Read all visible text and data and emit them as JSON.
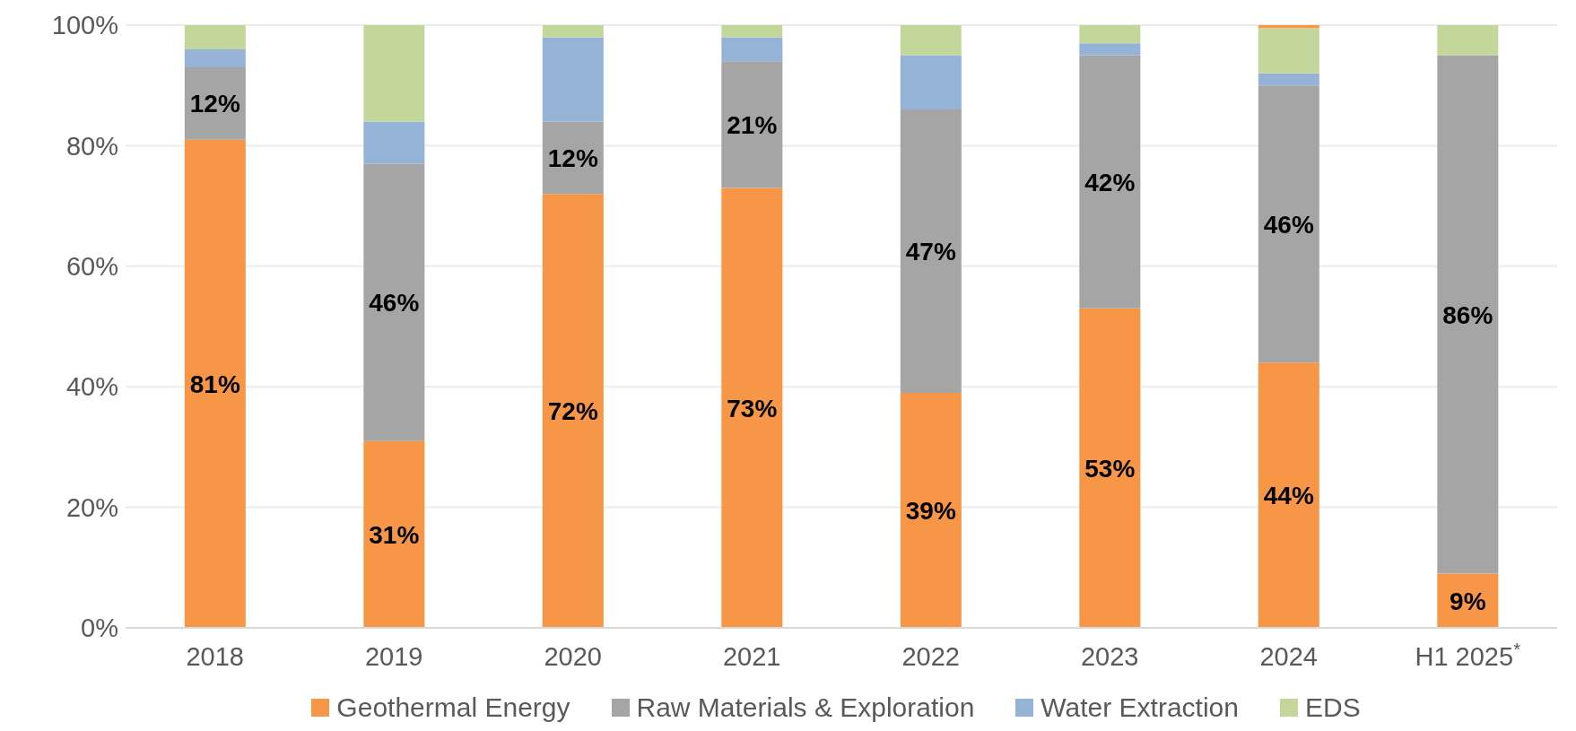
{
  "chart_data": {
    "type": "bar",
    "stacked": true,
    "categories": [
      "2018",
      "2019",
      "2020",
      "2021",
      "2022",
      "2023",
      "2024",
      "H1 2025$^{*}$"
    ],
    "series": [
      {
        "name": "Geothermal Energy",
        "color": "#f79646",
        "values": [
          81,
          31,
          72,
          73,
          39,
          53,
          44,
          9
        ],
        "value_labels": [
          "81%",
          "31%",
          "72%",
          "73%",
          "39%",
          "53%",
          "44%",
          "9%"
        ]
      },
      {
        "name": "Raw Materials & Exploration",
        "color": "#a5a5a5",
        "values": [
          12,
          46,
          12,
          21,
          47,
          42,
          46,
          86
        ],
        "value_labels": [
          "12%",
          "46%",
          "12%",
          "21%",
          "47%",
          "42%",
          "46%",
          "86%"
        ]
      },
      {
        "name": "Water Extraction",
        "color": "#95b3d7",
        "values": [
          3,
          7,
          14,
          4,
          9,
          2,
          2,
          0
        ]
      },
      {
        "name": "EDS",
        "color": "#c4d79b",
        "values": [
          4,
          16,
          2,
          2,
          5,
          3,
          7.5,
          5
        ]
      },
      {
        "color": "#f79646",
        "values": [
          null,
          null,
          null,
          null,
          null,
          null,
          0.5,
          null
        ]
      }
    ],
    "ylim": [
      0,
      100
    ],
    "yticks": [
      {
        "value": 0,
        "label": "0%"
      },
      {
        "value": 20,
        "label": "20%"
      },
      {
        "value": 40,
        "label": "40%"
      },
      {
        "value": 60,
        "label": "60%"
      },
      {
        "value": 80,
        "label": "80%"
      },
      {
        "value": 100,
        "label": "100%"
      }
    ],
    "grid": "y",
    "legend": "bottom"
  }
}
